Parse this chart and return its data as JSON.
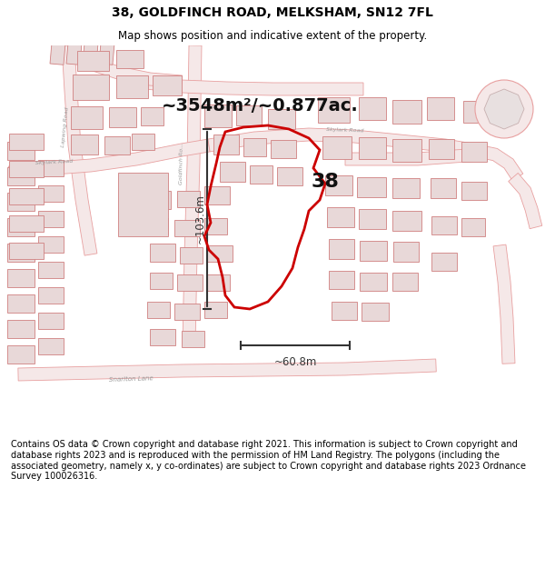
{
  "title": "38, GOLDFINCH ROAD, MELKSHAM, SN12 7FL",
  "subtitle": "Map shows position and indicative extent of the property.",
  "footer": "Contains OS data © Crown copyright and database right 2021. This information is subject to Crown copyright and database rights 2023 and is reproduced with the permission of HM Land Registry. The polygons (including the associated geometry, namely x, y co-ordinates) are subject to Crown copyright and database rights 2023 Ordnance Survey 100026316.",
  "area_label": "~3548m²/~0.877ac.",
  "number_label": "38",
  "height_label": "~103.6m",
  "width_label": "~60.8m",
  "road_line_color": "#e8a0a0",
  "road_fill_color": "#f5e8e8",
  "bld_edge_color": "#d08080",
  "bld_fill_color": "#e8d8d8",
  "red_poly_color": "#cc0000",
  "meas_color": "#333333",
  "bg_color": "#ffffff",
  "map_bg": "#f8f2f2",
  "title_fontsize": 10,
  "subtitle_fontsize": 8.5,
  "footer_fontsize": 7
}
